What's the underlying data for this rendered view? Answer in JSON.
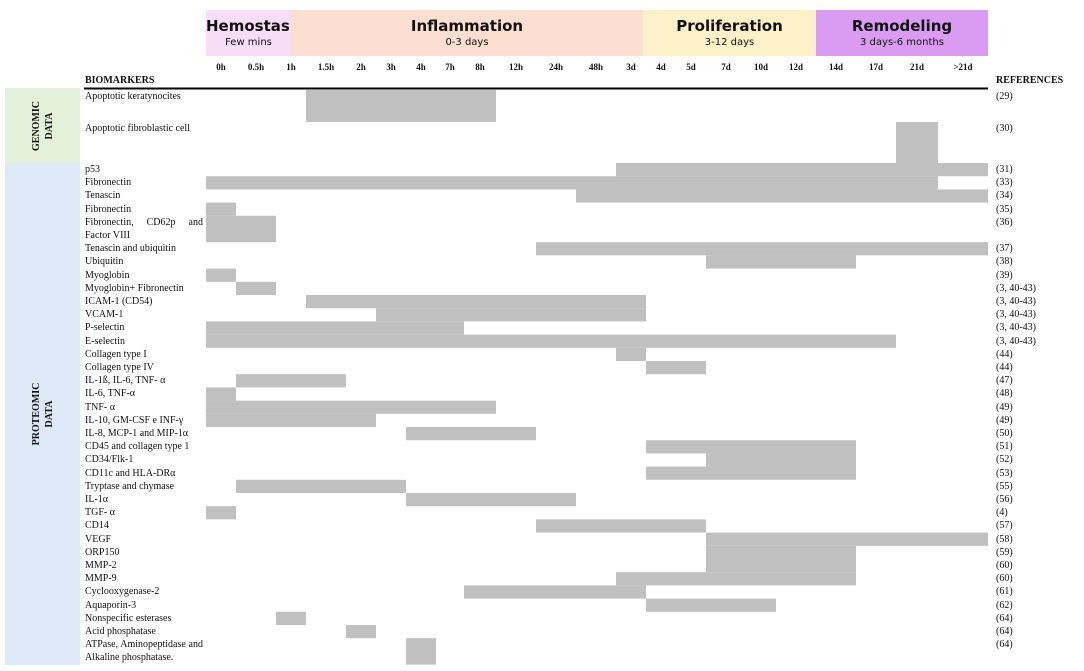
{
  "phases": [
    {
      "name": "Hemostasis",
      "duration": "Few mins"
    },
    {
      "name": "Inflammation",
      "duration": "0-3 days"
    },
    {
      "name": "Proliferation",
      "duration": "3-12 days"
    },
    {
      "name": "Remodeling",
      "duration": "3 days-6 months"
    }
  ],
  "columns": [
    "0h",
    "0.5h",
    "1h",
    "1.5h",
    "2h",
    "3h",
    "4h",
    "7h",
    "8h",
    "12h",
    "24h",
    "48h",
    "3d",
    "4d",
    "5d",
    "7d",
    "10d",
    "12d",
    "14d",
    "17d",
    "21d",
    ">21d"
  ],
  "header": {
    "biomarkers": "BIOMARKERS",
    "references": "REFERENCES"
  },
  "groups": [
    {
      "label": "GENOMIC DATA",
      "rows": [
        {
          "label": "Apoptotic keratynocites",
          "ref": "(29)",
          "span": [
            3,
            9
          ]
        },
        {
          "label": "Apoptotic fibroblastic cell",
          "ref": "(30)",
          "span": [
            20,
            21
          ]
        }
      ]
    },
    {
      "label": "PROTEOMIC DATA",
      "rows": [
        {
          "label": "p53",
          "ref": "(31)",
          "span": [
            12,
            22
          ]
        },
        {
          "label": "Fibronectin",
          "ref": "(33)",
          "span": [
            0,
            21
          ]
        },
        {
          "label": "Tenascin",
          "ref": "(34)",
          "span": [
            11,
            22
          ]
        },
        {
          "label": "Fibronectin",
          "ref": "(35)",
          "span": [
            0,
            1
          ]
        },
        {
          "label": "Fibronectin, CD62p and Factor VIII",
          "ref": "(36)",
          "span": [
            0,
            2
          ]
        },
        {
          "label": "Tenascin and ubiquitin",
          "ref": "(37)",
          "span": [
            10,
            22
          ]
        },
        {
          "label": "Ubiquitin",
          "ref": "(38)",
          "span": [
            15,
            19
          ]
        },
        {
          "label": "Myoglobin",
          "ref": "(39)",
          "span": [
            0,
            1
          ]
        },
        {
          "label": "Myoglobin+ Fibronectin",
          "ref": "(3, 40-43)",
          "span": [
            1,
            2
          ]
        },
        {
          "label": "ICAM-1 (CD54)",
          "ref": "(3, 40-43)",
          "span": [
            3,
            13
          ]
        },
        {
          "label": "VCAM-1",
          "ref": "(3, 40-43)",
          "span": [
            5,
            13
          ]
        },
        {
          "label": "P-selectin",
          "ref": "(3, 40-43)",
          "span": [
            0,
            8
          ]
        },
        {
          "label": "E-selectin",
          "ref": "(3, 40-43)",
          "span": [
            0,
            20
          ]
        },
        {
          "label": "Collagen type I",
          "ref": "(44)",
          "span": [
            12,
            13
          ]
        },
        {
          "label": "Collagen type IV",
          "ref": "(44)",
          "span": [
            13,
            15
          ]
        },
        {
          "label": "IL-1ß, IL-6, TNF- α",
          "ref": "(47)",
          "span": [
            1,
            4
          ]
        },
        {
          "label": "IL-6, TNF-α",
          "ref": "(48)",
          "span": [
            0,
            1
          ]
        },
        {
          "label": "TNF- α",
          "ref": "(49)",
          "span": [
            0,
            9
          ]
        },
        {
          "label": "IL-10, GM-CSF e INF-γ",
          "ref": "(49)",
          "span": [
            0,
            5
          ]
        },
        {
          "label": "IL-8, MCP-1 and MIP-1α",
          "ref": "(50)",
          "span": [
            6,
            10
          ]
        },
        {
          "label": "CD45 and collagen type 1",
          "ref": "(51)",
          "span": [
            13,
            19
          ]
        },
        {
          "label": "CD34/Flk-1",
          "ref": "(52)",
          "span": [
            15,
            19
          ]
        },
        {
          "label": "CD11c and HLA-DRα",
          "ref": "(53)",
          "span": [
            13,
            19
          ]
        },
        {
          "label": "Tryptase and chymase",
          "ref": "(55)",
          "span": [
            1,
            6
          ]
        },
        {
          "label": "IL-1α",
          "ref": "(56)",
          "span": [
            6,
            11
          ]
        },
        {
          "label": "TGF- α",
          "ref": "(4)",
          "span": [
            0,
            1
          ]
        },
        {
          "label": "CD14",
          "ref": "(57)",
          "span": [
            10,
            15
          ]
        },
        {
          "label": "VEGF",
          "ref": "(58)",
          "span": [
            15,
            22
          ]
        },
        {
          "label": "ORP150",
          "ref": "(59)",
          "span": [
            15,
            19
          ]
        },
        {
          "label": "MMP-2",
          "ref": "(60)",
          "span": [
            15,
            19
          ]
        },
        {
          "label": "MMP-9",
          "ref": "(60)",
          "span": [
            12,
            19
          ]
        },
        {
          "label": "Cyclooxygenase-2",
          "ref": "(61)",
          "span": [
            8,
            13
          ]
        },
        {
          "label": "Aquaporin-3",
          "ref": "(62)",
          "span": [
            13,
            17
          ]
        },
        {
          "label": "Nonspecific esterases",
          "ref": "(64)",
          "span": [
            2,
            3
          ]
        },
        {
          "label": "Acid phosphatase",
          "ref": "(64)",
          "span": [
            4,
            5
          ]
        },
        {
          "label": "ATPase, Aminopeptidase and Alkaline phosphatase.",
          "ref": "(64)",
          "span": [
            6,
            7
          ]
        }
      ]
    }
  ]
}
